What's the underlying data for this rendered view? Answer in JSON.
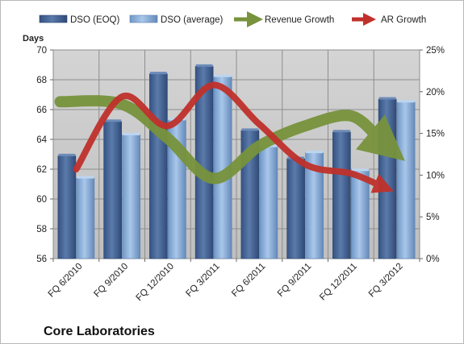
{
  "chart_data": {
    "type": "bar",
    "title": "Core Laboratories",
    "ylabel": "Days",
    "categories": [
      "FQ 6/2010",
      "FQ 9/2010",
      "FQ 12/2010",
      "FQ 3/2011",
      "FQ 6/2011",
      "FQ 9/2011",
      "FQ 12/2011",
      "FQ 3/2012"
    ],
    "ylim": [
      56,
      70
    ],
    "yticks": [
      "56",
      "58",
      "60",
      "62",
      "64",
      "66",
      "68",
      "70"
    ],
    "y2lim": [
      0,
      25
    ],
    "y2ticks": [
      "0%",
      "5%",
      "10%",
      "15%",
      "20%",
      "25%"
    ],
    "grid": true,
    "legend": "top",
    "series": [
      {
        "name": "DSO (EOQ)",
        "kind": "bar",
        "axis": "left",
        "color": "#4a6a9a",
        "values": [
          62.9,
          65.2,
          68.4,
          68.9,
          64.6,
          62.7,
          64.5,
          66.7
        ]
      },
      {
        "name": "DSO (average)",
        "kind": "bar",
        "axis": "left",
        "color": "#8fb3dd",
        "values": [
          61.4,
          64.3,
          65.3,
          68.2,
          63.5,
          63.1,
          61.9,
          66.5
        ]
      },
      {
        "name": "Revenue Growth",
        "kind": "line",
        "axis": "right",
        "color": "#77933c",
        "values": [
          18.8,
          18.5,
          14.4,
          9.6,
          13.5,
          15.9,
          17.1,
          13.5
        ]
      },
      {
        "name": "AR Growth",
        "kind": "line",
        "axis": "right",
        "color": "#c0312b",
        "values": [
          10.7,
          19.4,
          15.9,
          20.8,
          16.1,
          11.3,
          10.2,
          8.4
        ]
      }
    ]
  }
}
